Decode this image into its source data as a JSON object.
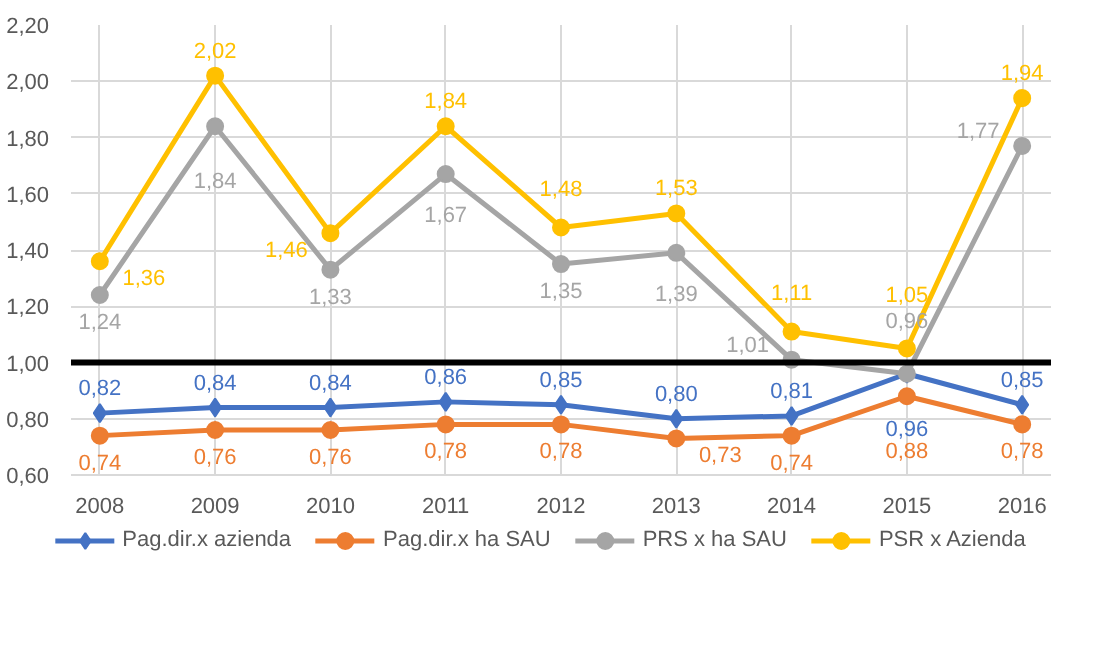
{
  "chart_data": {
    "type": "line",
    "categories": [
      "2008",
      "2009",
      "2010",
      "2011",
      "2012",
      "2013",
      "2014",
      "2015",
      "2016"
    ],
    "series": [
      {
        "name": "Pag.dir.x azienda",
        "color": "#4472c4",
        "marker": "diamond",
        "values": [
          0.82,
          0.84,
          0.84,
          0.86,
          0.85,
          0.8,
          0.81,
          0.96,
          0.85
        ],
        "value_labels": [
          "0,82",
          "0,84",
          "0,84",
          "0,86",
          "0,85",
          "0,80",
          "0,81",
          "0,96",
          "0,85"
        ]
      },
      {
        "name": "Pag.dir.x ha SAU",
        "color": "#ed7d31",
        "marker": "circle",
        "values": [
          0.74,
          0.76,
          0.76,
          0.78,
          0.78,
          0.73,
          0.74,
          0.88,
          0.78
        ],
        "value_labels": [
          "0,74",
          "0,76",
          "0,76",
          "0,78",
          "0,78",
          "0,73",
          "0,74",
          "0,88",
          "0,78"
        ]
      },
      {
        "name": "PRS x ha SAU",
        "color": "#a5a5a5",
        "marker": "circle",
        "values": [
          1.24,
          1.84,
          1.33,
          1.67,
          1.35,
          1.39,
          1.01,
          0.96,
          1.77
        ],
        "value_labels": [
          "1,24",
          "1,84",
          "1,33",
          "1,67",
          "1,35",
          "1,39",
          "1,01",
          "0,96",
          "1,77"
        ]
      },
      {
        "name": "PSR x Azienda",
        "color": "#ffc000",
        "marker": "circle",
        "values": [
          1.36,
          2.02,
          1.46,
          1.84,
          1.48,
          1.53,
          1.11,
          1.05,
          1.94
        ],
        "value_labels": [
          "1,36",
          "2,02",
          "1,46",
          "1,84",
          "1,48",
          "1,53",
          "1,11",
          "1,05",
          "1,94"
        ]
      }
    ],
    "ylim": [
      0.6,
      2.2
    ],
    "yticks": [
      {
        "value": 0.6,
        "label": "0,60"
      },
      {
        "value": 0.8,
        "label": "0,80"
      },
      {
        "value": 1.0,
        "label": "1,00"
      },
      {
        "value": 1.2,
        "label": "1,20"
      },
      {
        "value": 1.4,
        "label": "1,40"
      },
      {
        "value": 1.6,
        "label": "1,60"
      },
      {
        "value": 1.8,
        "label": "1,80"
      },
      {
        "value": 2.0,
        "label": "2,00"
      },
      {
        "value": 2.2,
        "label": "2,20"
      }
    ],
    "ref_lines": [
      {
        "axis": "y",
        "value": 1.0,
        "color": "#000000"
      }
    ],
    "grid": true,
    "legend": "bottom",
    "line_style": "solid"
  }
}
